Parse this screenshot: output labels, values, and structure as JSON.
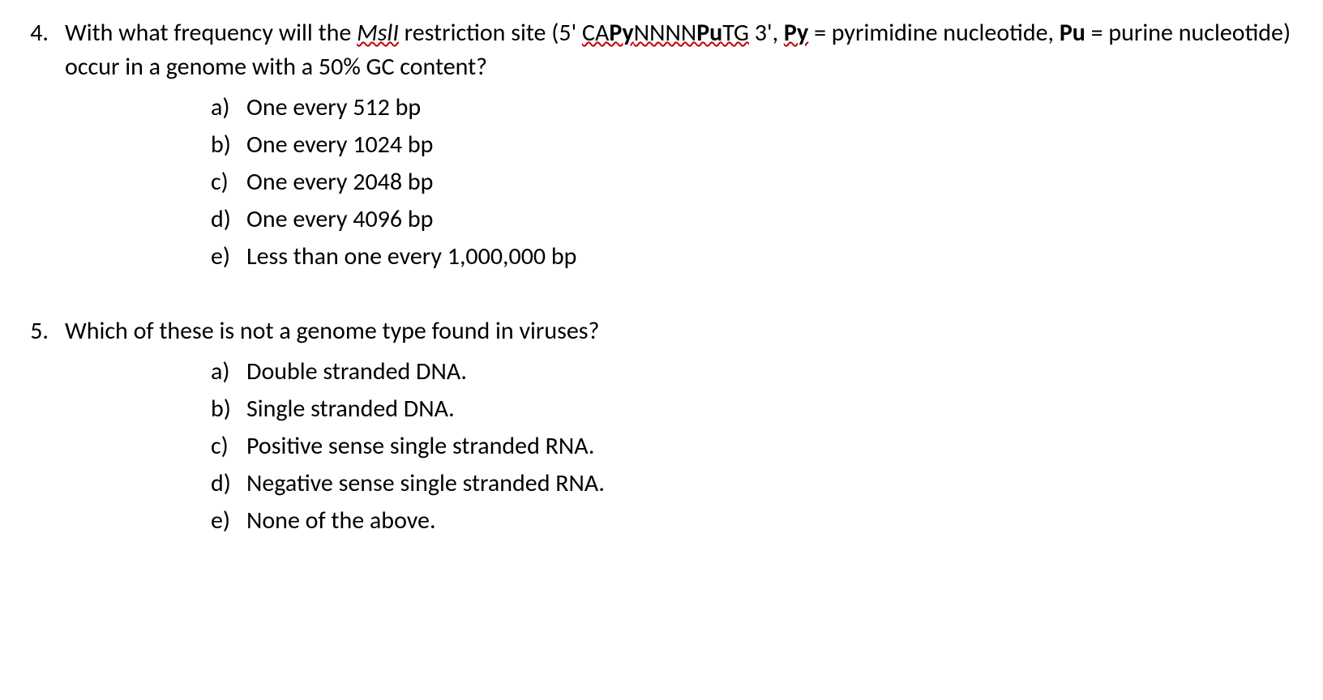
{
  "questions": [
    {
      "number": "4.",
      "stem_parts": {
        "part1": "With what frequency will the ",
        "msll": "MslI",
        "part2": " restriction site (5' ",
        "capynnnnputg": "CAPyNNNNPuTG",
        "part3": " 3', ",
        "py": "Py",
        "part4": " = pyrimidine nucleotide, ",
        "pu": "Pu",
        "part5": " = purine nucleotide) occur in a genome with a 50% GC content?"
      },
      "options": [
        {
          "letter": "a)",
          "text": "One every 512 bp"
        },
        {
          "letter": "b)",
          "text": "One every 1024 bp"
        },
        {
          "letter": "c)",
          "text": "One every 2048 bp"
        },
        {
          "letter": "d)",
          "text": "One every 4096 bp"
        },
        {
          "letter": "e)",
          "text": "Less than one every 1,000,000 bp"
        }
      ]
    },
    {
      "number": "5.",
      "stem_text": "Which of these is not a genome type found in viruses?",
      "options": [
        {
          "letter": "a)",
          "text": "Double stranded DNA."
        },
        {
          "letter": "b)",
          "text": "Single stranded DNA."
        },
        {
          "letter": "c)",
          "text": "Positive sense single stranded RNA."
        },
        {
          "letter": "d)",
          "text": "Negative sense single stranded RNA."
        },
        {
          "letter": "e)",
          "text": "None of the above."
        }
      ]
    }
  ],
  "colors": {
    "text": "#000000",
    "background": "#ffffff",
    "squiggle": "#c00000"
  },
  "typography": {
    "font_family": "Calibri, Arial, sans-serif",
    "font_size": 30
  }
}
